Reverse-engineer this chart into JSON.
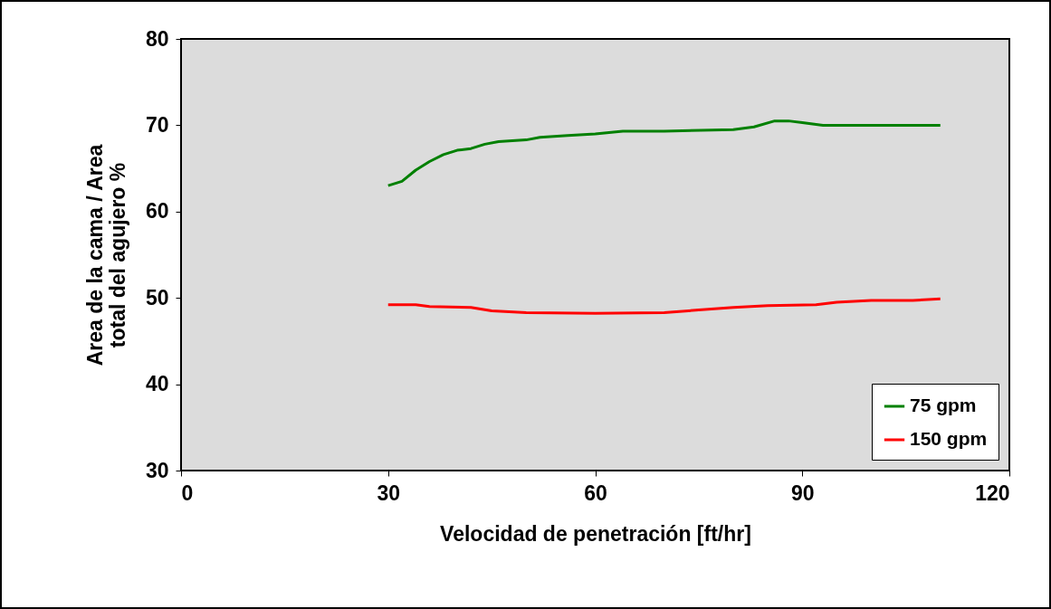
{
  "chart_data": {
    "type": "line",
    "xlabel": "Velocidad de penetración [ft/hr]",
    "ylabel": "Area de la cama / Area total del agujero %",
    "xlim": [
      0,
      120
    ],
    "xticks": [
      0,
      30,
      60,
      90,
      120
    ],
    "ylim": [
      30,
      80
    ],
    "yticks": [
      30,
      40,
      50,
      60,
      70,
      80
    ],
    "legend": "bottom right",
    "marker": "none",
    "line_style": "solid",
    "series": [
      {
        "name": "75 gpm",
        "color": "#008000",
        "x": [
          30,
          32,
          34,
          36,
          38,
          40,
          42,
          44,
          46,
          50,
          52,
          56,
          60,
          64,
          70,
          80,
          83,
          86,
          88,
          90,
          93,
          110
        ],
        "values": [
          63,
          63.5,
          64.8,
          65.8,
          66.6,
          67.1,
          67.3,
          67.8,
          68.1,
          68.3,
          68.6,
          68.8,
          69,
          69.3,
          69.3,
          69.5,
          69.8,
          70.5,
          70.5,
          70.3,
          70,
          70
        ]
      },
      {
        "name": "150 gpm",
        "color": "#ff0000",
        "x": [
          30,
          34,
          36,
          42,
          45,
          50,
          60,
          70,
          75,
          80,
          85,
          92,
          95,
          100,
          106,
          110
        ],
        "values": [
          49.2,
          49.2,
          49,
          48.9,
          48.5,
          48.3,
          48.2,
          48.3,
          48.6,
          48.9,
          49.1,
          49.2,
          49.5,
          49.7,
          49.7,
          49.9
        ]
      }
    ]
  }
}
